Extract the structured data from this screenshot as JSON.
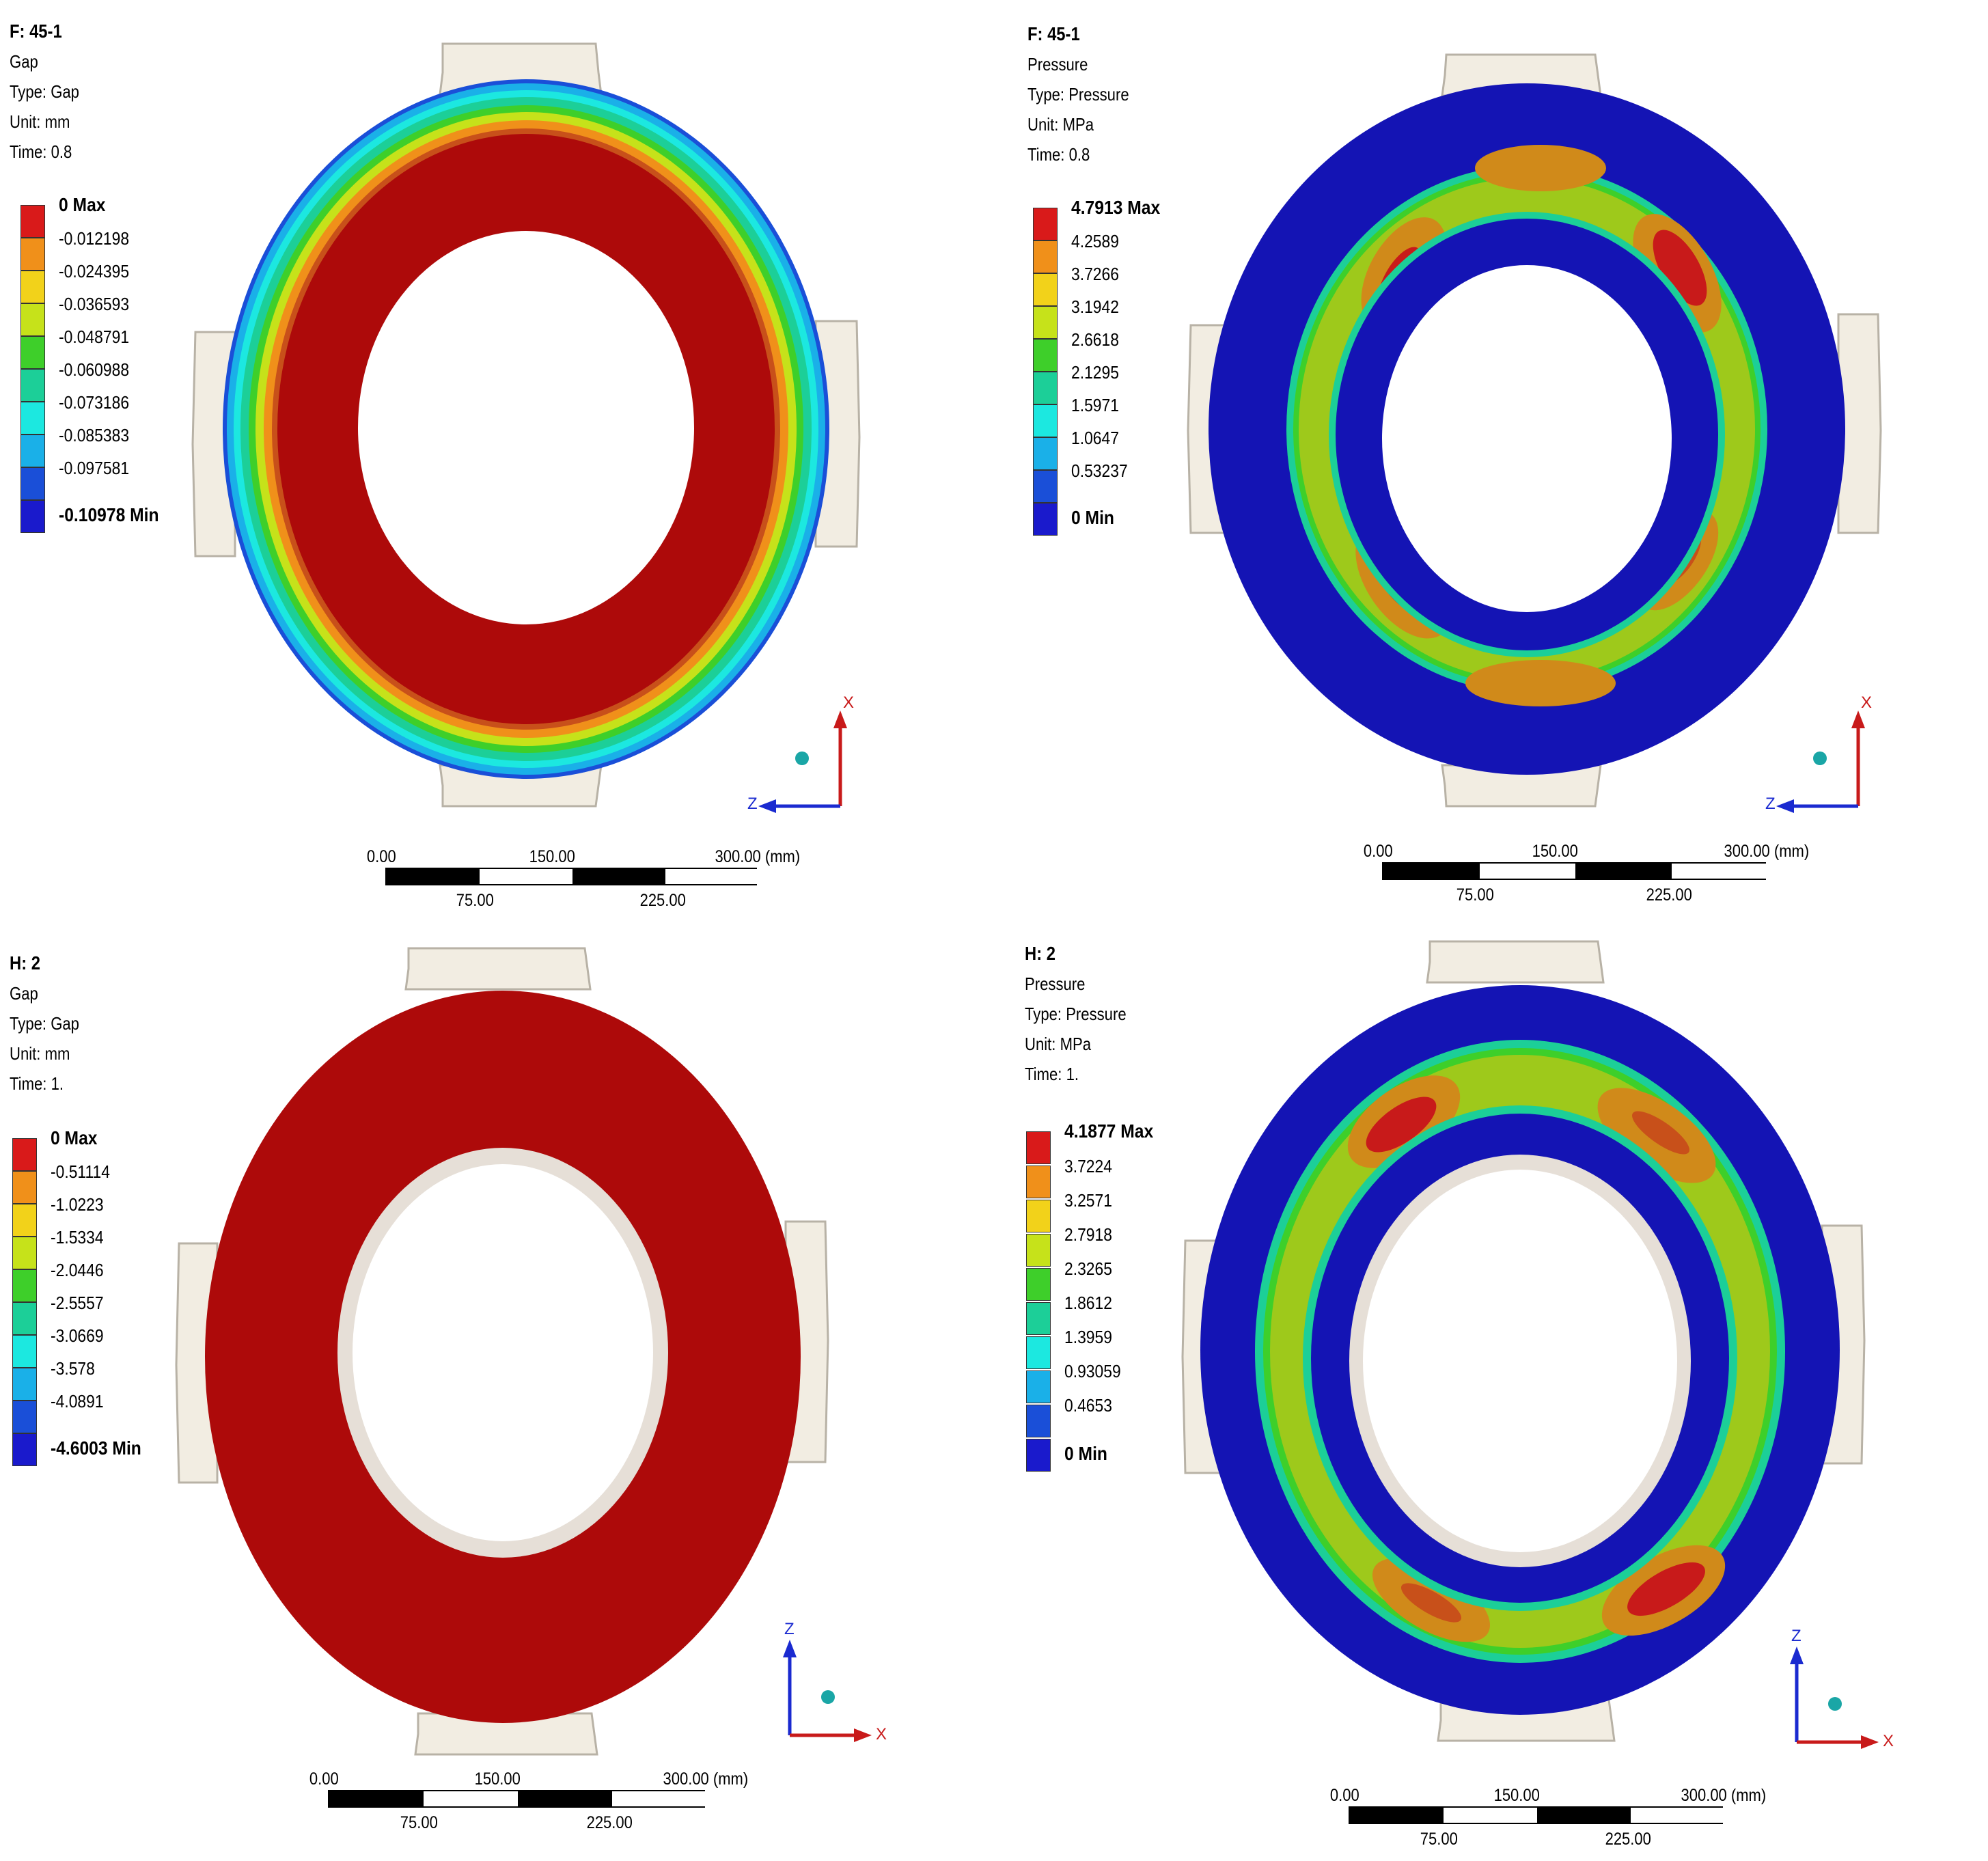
{
  "panels": [
    {
      "id": "F: 45-1",
      "name": "Gap",
      "type": "Type: Gap",
      "unit": "Unit: mm",
      "time": "Time: 0.8",
      "legend": [
        "0 Max",
        "-0.012198",
        "-0.024395",
        "-0.036593",
        "-0.048791",
        "-0.060988",
        "-0.073186",
        "-0.085383",
        "-0.097581",
        "-0.10978 Min"
      ],
      "axes": {
        "up": "X",
        "left": "Z"
      }
    },
    {
      "id": "F: 45-1",
      "name": "Pressure",
      "type": "Type: Pressure",
      "unit": "Unit: MPa",
      "time": "Time: 0.8",
      "legend": [
        "4.7913 Max",
        "4.2589",
        "3.7266",
        "3.1942",
        "2.6618",
        "2.1295",
        "1.5971",
        "1.0647",
        "0.53237",
        "0 Min"
      ],
      "axes": {
        "up": "X",
        "left": "Z"
      }
    },
    {
      "id": "H: 2",
      "name": "Gap",
      "type": "Type: Gap",
      "unit": "Unit: mm",
      "time": "Time: 1.",
      "legend": [
        "0 Max",
        "-0.51114",
        "-1.0223",
        "-1.5334",
        "-2.0446",
        "-2.5557",
        "-3.0669",
        "-3.578",
        "-4.0891",
        "-4.6003 Min"
      ],
      "axes": {
        "up": "Z",
        "right": "X"
      }
    },
    {
      "id": "H: 2",
      "name": "Pressure",
      "type": "Type: Pressure",
      "unit": "Unit: MPa",
      "time": "Time: 1.",
      "legend": [
        "4.1877 Max",
        "3.7224",
        "3.2571",
        "2.7918",
        "2.3265",
        "1.8612",
        "1.3959",
        "0.93059",
        "0.4653",
        "0 Min"
      ],
      "axes": {
        "up": "Z",
        "right": "X"
      }
    }
  ],
  "scale_bar": {
    "t0": "0.00",
    "t150": "150.00",
    "t300": "300.00 (mm)",
    "t75": "75.00",
    "t225": "225.00"
  },
  "colors": {
    "legend": [
      "#d91a1a",
      "#f0901a",
      "#f2d21a",
      "#c6e21a",
      "#3ecf2a",
      "#1ccf98",
      "#1ce8e0",
      "#1ab0e8",
      "#1a4fd8",
      "#1a1acc"
    ],
    "body_red": "#ad0a0a",
    "body_blue": "#1414b4",
    "bracket": "#f2ede2",
    "inner_ring": "#e6dfd7"
  }
}
